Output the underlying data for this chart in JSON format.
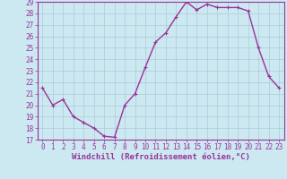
{
  "x": [
    0,
    1,
    2,
    3,
    4,
    5,
    6,
    7,
    8,
    9,
    10,
    11,
    12,
    13,
    14,
    15,
    16,
    17,
    18,
    19,
    20,
    21,
    22,
    23
  ],
  "y": [
    21.5,
    20.0,
    20.5,
    19.0,
    18.5,
    18.0,
    17.3,
    17.2,
    20.0,
    21.0,
    23.3,
    25.5,
    26.3,
    27.7,
    29.0,
    28.3,
    28.8,
    28.5,
    28.5,
    28.5,
    28.2,
    25.0,
    22.5,
    21.5
  ],
  "line_color": "#993399",
  "marker_color": "#993399",
  "bg_color": "#cce8f0",
  "grid_color": "#aaccdd",
  "xlabel": "Windchill (Refroidissement éolien,°C)",
  "ylim": [
    17,
    29
  ],
  "xlim": [
    -0.5,
    23.5
  ],
  "yticks": [
    17,
    18,
    19,
    20,
    21,
    22,
    23,
    24,
    25,
    26,
    27,
    28,
    29
  ],
  "xticks": [
    0,
    1,
    2,
    3,
    4,
    5,
    6,
    7,
    8,
    9,
    10,
    11,
    12,
    13,
    14,
    15,
    16,
    17,
    18,
    19,
    20,
    21,
    22,
    23
  ],
  "xtick_labels": [
    "0",
    "1",
    "2",
    "3",
    "4",
    "5",
    "6",
    "7",
    "8",
    "9",
    "10",
    "11",
    "12",
    "13",
    "14",
    "15",
    "16",
    "17",
    "18",
    "19",
    "20",
    "21",
    "22",
    "23"
  ],
  "font_color": "#993399",
  "line_width": 1.0,
  "marker_size": 2.5,
  "xlabel_fontsize": 6.5,
  "xtick_fontsize": 5.5,
  "ytick_fontsize": 5.5
}
